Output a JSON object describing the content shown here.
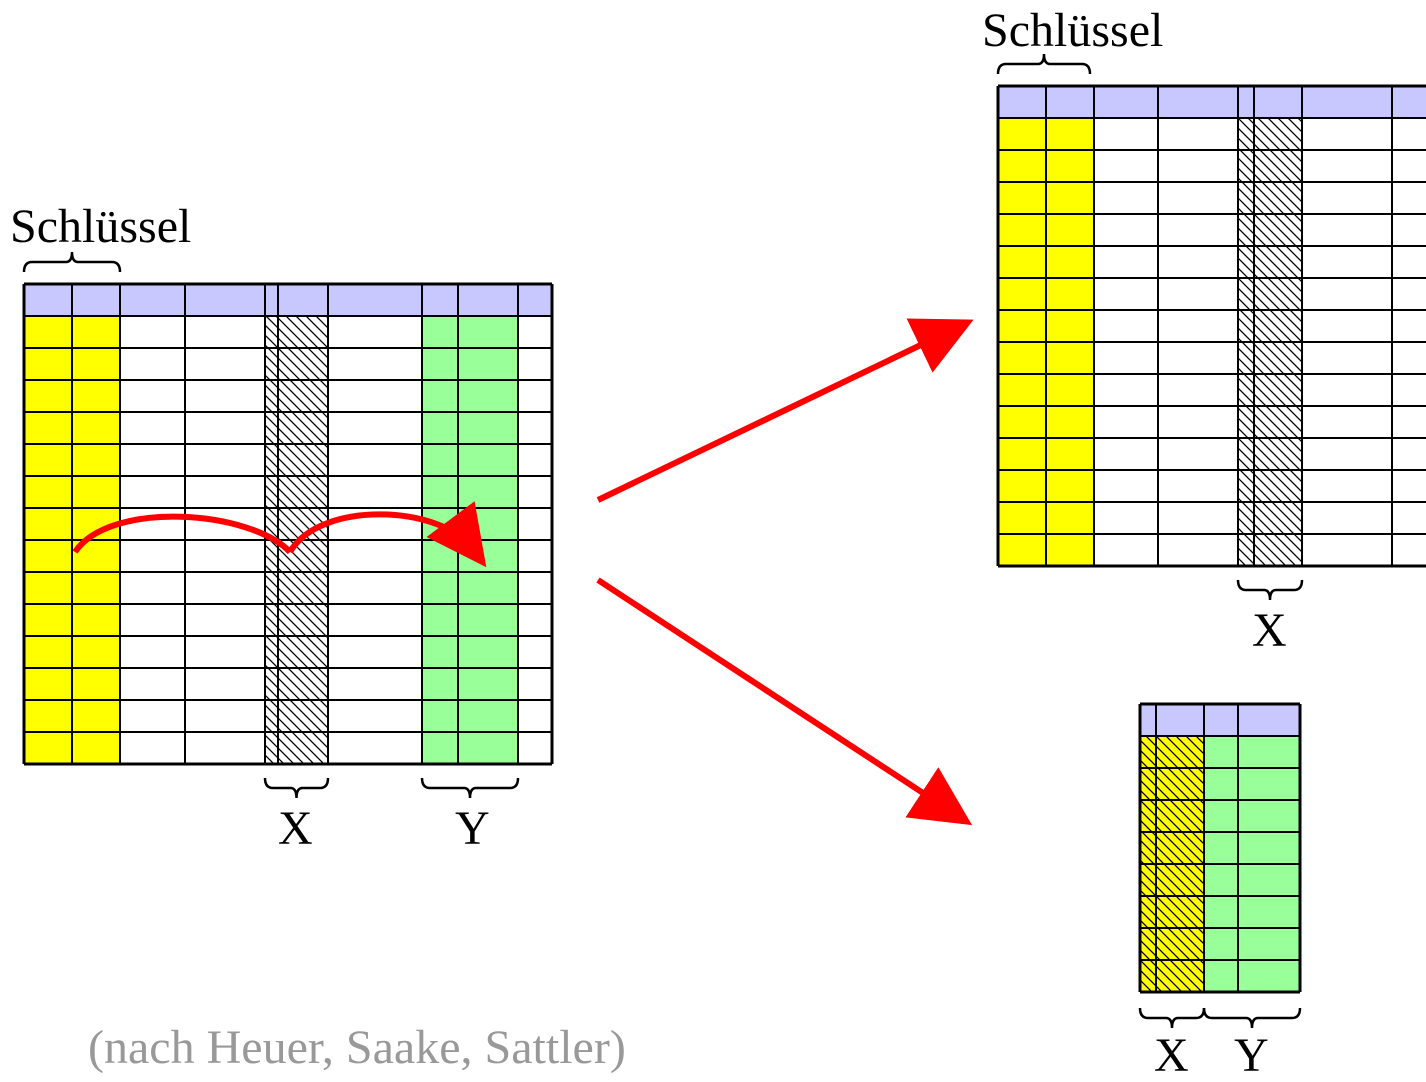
{
  "labels": {
    "left_key": "Schlüssel",
    "left_x": "X",
    "left_y": "Y",
    "right_key": "Schlüssel",
    "right_x": "X",
    "small_x": "X",
    "small_y": "Y",
    "source": "(nach Heuer, Saake, Sattler)"
  },
  "colors": {
    "header": "#c8c8ff",
    "key": "#ffff00",
    "y": "#99ff99",
    "arrow": "#ff0000",
    "grid": "#000000",
    "source_text": "#999999"
  },
  "tables": {
    "left": {
      "header_rows": 1,
      "body_rows": 14
    },
    "right": {
      "header_rows": 1,
      "body_rows": 14
    },
    "small": {
      "header_rows": 1,
      "body_rows": 8
    }
  }
}
